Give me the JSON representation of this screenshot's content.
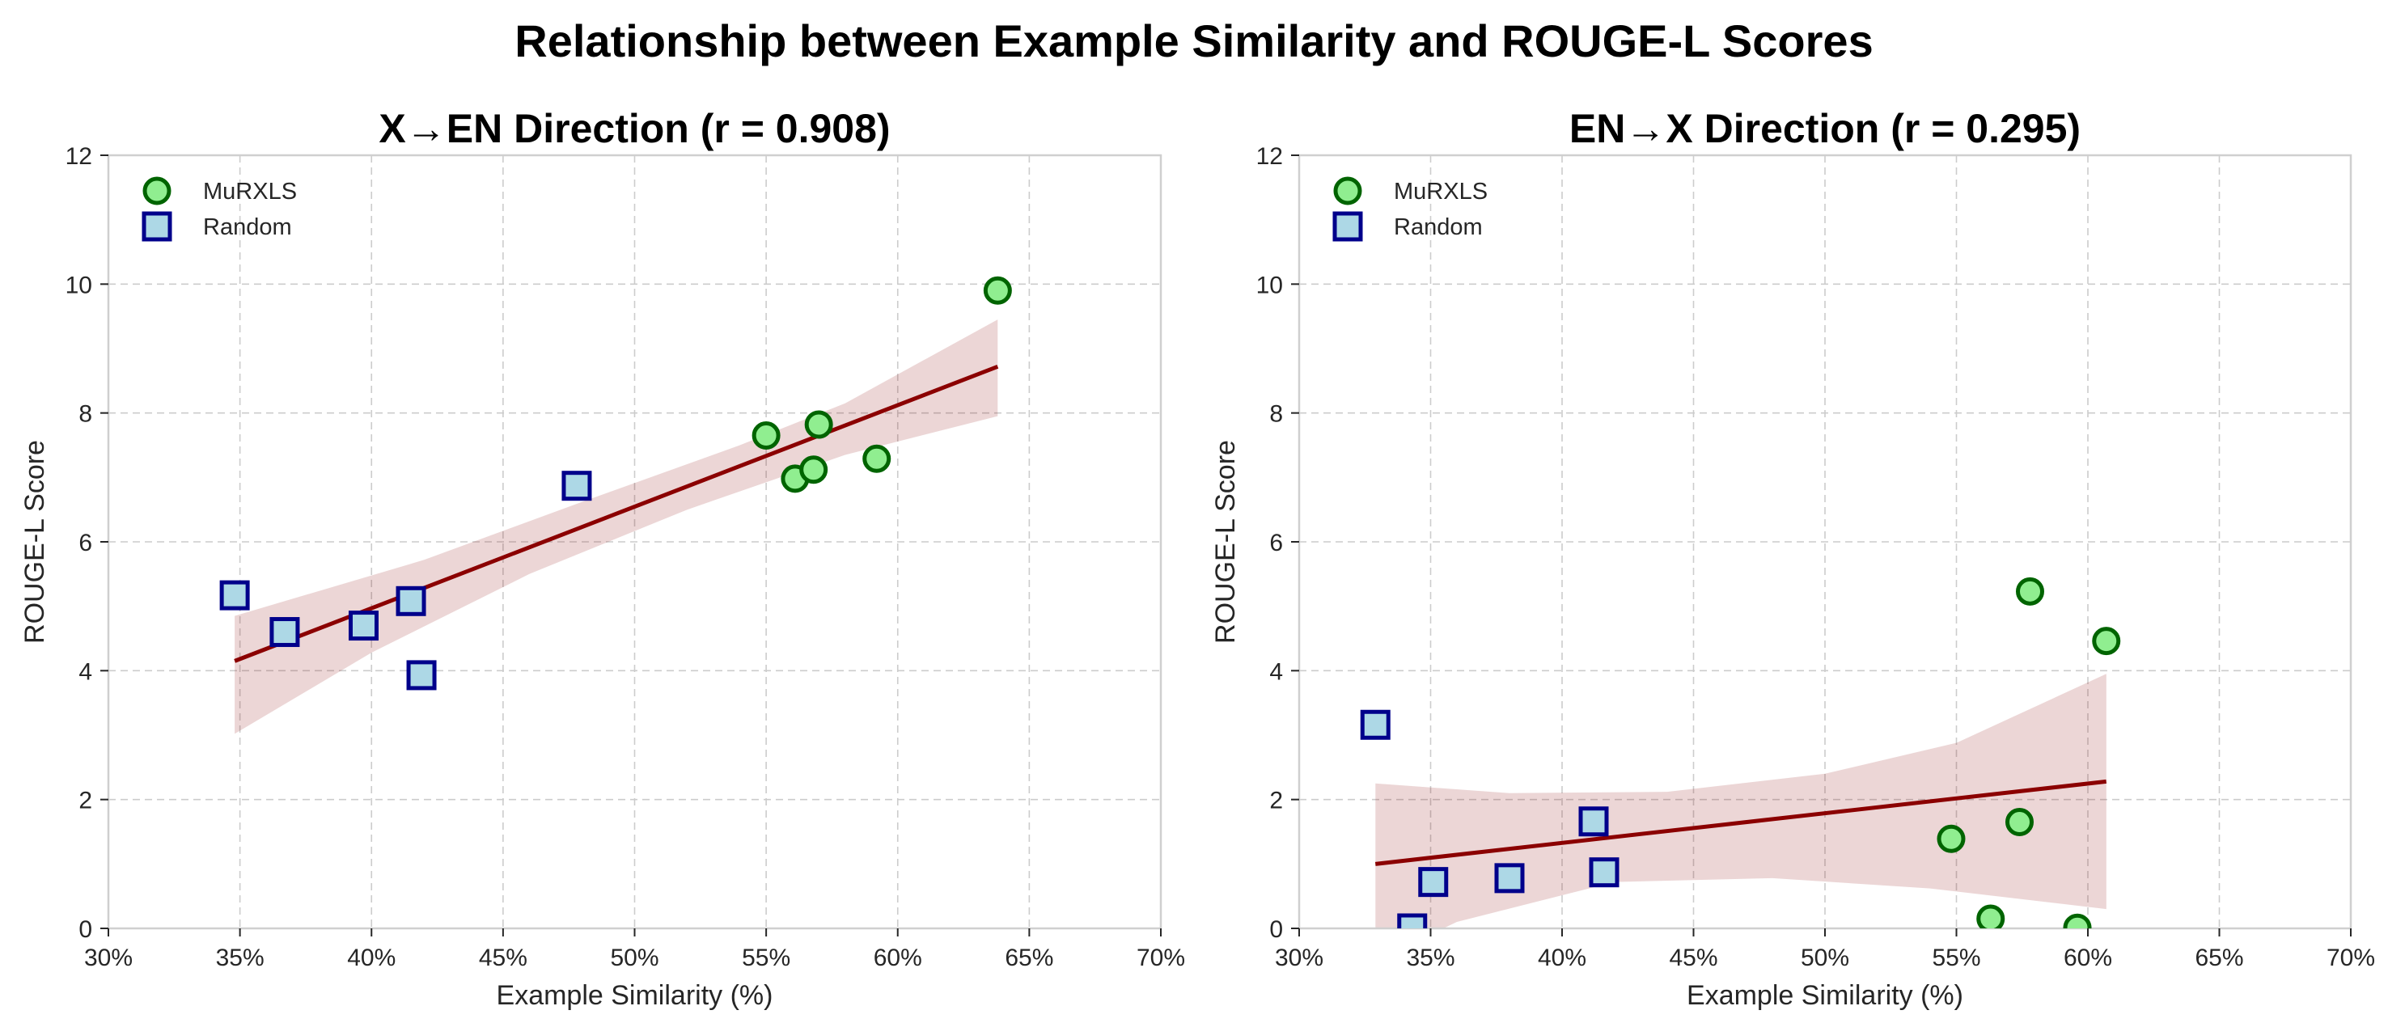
{
  "figure": {
    "title": "Relationship between Example Similarity and ROUGE-L Scores"
  },
  "chart_data": [
    {
      "type": "scatter",
      "title": "X→EN Direction (r = 0.908)",
      "xlabel": "Example Similarity (%)",
      "ylabel": "ROUGE-L Score",
      "xlim": [
        30,
        70
      ],
      "ylim": [
        0,
        12
      ],
      "xticks": [
        30,
        35,
        40,
        45,
        50,
        55,
        60,
        65,
        70
      ],
      "xtick_labels": [
        "30%",
        "35%",
        "40%",
        "45%",
        "50%",
        "55%",
        "60%",
        "65%",
        "70%"
      ],
      "yticks": [
        0,
        2,
        4,
        6,
        8,
        10,
        12
      ],
      "ytick_labels": [
        "0",
        "2",
        "4",
        "6",
        "8",
        "10",
        "12"
      ],
      "grid": true,
      "legend_position": "top-left",
      "series": [
        {
          "name": "MuRXLS",
          "marker": "circle",
          "color": "#90ee90",
          "edge_color": "#006400",
          "points": [
            {
              "x": 55.0,
              "y": 7.65
            },
            {
              "x": 56.1,
              "y": 6.98
            },
            {
              "x": 56.8,
              "y": 7.12
            },
            {
              "x": 57.0,
              "y": 7.82
            },
            {
              "x": 59.2,
              "y": 7.29
            },
            {
              "x": 63.8,
              "y": 9.9
            }
          ]
        },
        {
          "name": "Random",
          "marker": "square",
          "color": "#add8e6",
          "edge_color": "#00008b",
          "points": [
            {
              "x": 34.8,
              "y": 5.17
            },
            {
              "x": 36.7,
              "y": 4.6
            },
            {
              "x": 39.7,
              "y": 4.7
            },
            {
              "x": 41.5,
              "y": 5.08
            },
            {
              "x": 41.9,
              "y": 3.93
            },
            {
              "x": 47.8,
              "y": 6.87
            }
          ]
        }
      ],
      "regression": {
        "color": "#8b0000",
        "line": [
          {
            "x": 34.8,
            "y": 4.15
          },
          {
            "x": 63.8,
            "y": 8.72
          }
        ],
        "ci_upper": [
          {
            "x": 34.8,
            "y": 4.85
          },
          {
            "x": 42.0,
            "y": 5.72
          },
          {
            "x": 48.0,
            "y": 6.62
          },
          {
            "x": 54.0,
            "y": 7.5
          },
          {
            "x": 58.0,
            "y": 8.15
          },
          {
            "x": 63.8,
            "y": 9.45
          }
        ],
        "ci_lower": [
          {
            "x": 34.8,
            "y": 3.02
          },
          {
            "x": 40.0,
            "y": 4.28
          },
          {
            "x": 46.0,
            "y": 5.5
          },
          {
            "x": 52.0,
            "y": 6.5
          },
          {
            "x": 58.0,
            "y": 7.35
          },
          {
            "x": 63.8,
            "y": 7.95
          }
        ]
      }
    },
    {
      "type": "scatter",
      "title": "EN→X Direction (r = 0.295)",
      "xlabel": "Example Similarity (%)",
      "ylabel": "ROUGE-L Score",
      "xlim": [
        30,
        70
      ],
      "ylim": [
        0,
        12
      ],
      "xticks": [
        30,
        35,
        40,
        45,
        50,
        55,
        60,
        65,
        70
      ],
      "xtick_labels": [
        "30%",
        "35%",
        "40%",
        "45%",
        "50%",
        "55%",
        "60%",
        "65%",
        "70%"
      ],
      "yticks": [
        0,
        2,
        4,
        6,
        8,
        10,
        12
      ],
      "ytick_labels": [
        "0",
        "2",
        "4",
        "6",
        "8",
        "10",
        "12"
      ],
      "grid": true,
      "legend_position": "top-left",
      "series": [
        {
          "name": "MuRXLS",
          "marker": "circle",
          "color": "#90ee90",
          "edge_color": "#006400",
          "points": [
            {
              "x": 54.8,
              "y": 1.39
            },
            {
              "x": 56.3,
              "y": 0.15
            },
            {
              "x": 57.4,
              "y": 1.65
            },
            {
              "x": 57.8,
              "y": 5.23
            },
            {
              "x": 59.6,
              "y": 0.01
            },
            {
              "x": 60.7,
              "y": 4.46
            }
          ]
        },
        {
          "name": "Random",
          "marker": "square",
          "color": "#add8e6",
          "edge_color": "#00008b",
          "points": [
            {
              "x": 32.9,
              "y": 3.16
            },
            {
              "x": 34.3,
              "y": 0.0
            },
            {
              "x": 35.1,
              "y": 0.72
            },
            {
              "x": 38.0,
              "y": 0.78
            },
            {
              "x": 41.2,
              "y": 1.66
            },
            {
              "x": 41.6,
              "y": 0.87
            }
          ]
        }
      ],
      "regression": {
        "color": "#8b0000",
        "line": [
          {
            "x": 32.9,
            "y": 1.0
          },
          {
            "x": 60.7,
            "y": 2.28
          }
        ],
        "ci_upper": [
          {
            "x": 32.9,
            "y": 2.25
          },
          {
            "x": 38.0,
            "y": 2.1
          },
          {
            "x": 44.0,
            "y": 2.12
          },
          {
            "x": 50.0,
            "y": 2.4
          },
          {
            "x": 55.0,
            "y": 2.88
          },
          {
            "x": 60.7,
            "y": 3.95
          }
        ],
        "ci_lower": [
          {
            "x": 32.9,
            "y": -0.5
          },
          {
            "x": 36.0,
            "y": 0.1
          },
          {
            "x": 42.0,
            "y": 0.72
          },
          {
            "x": 48.0,
            "y": 0.78
          },
          {
            "x": 54.0,
            "y": 0.62
          },
          {
            "x": 60.7,
            "y": 0.3
          }
        ]
      }
    }
  ]
}
